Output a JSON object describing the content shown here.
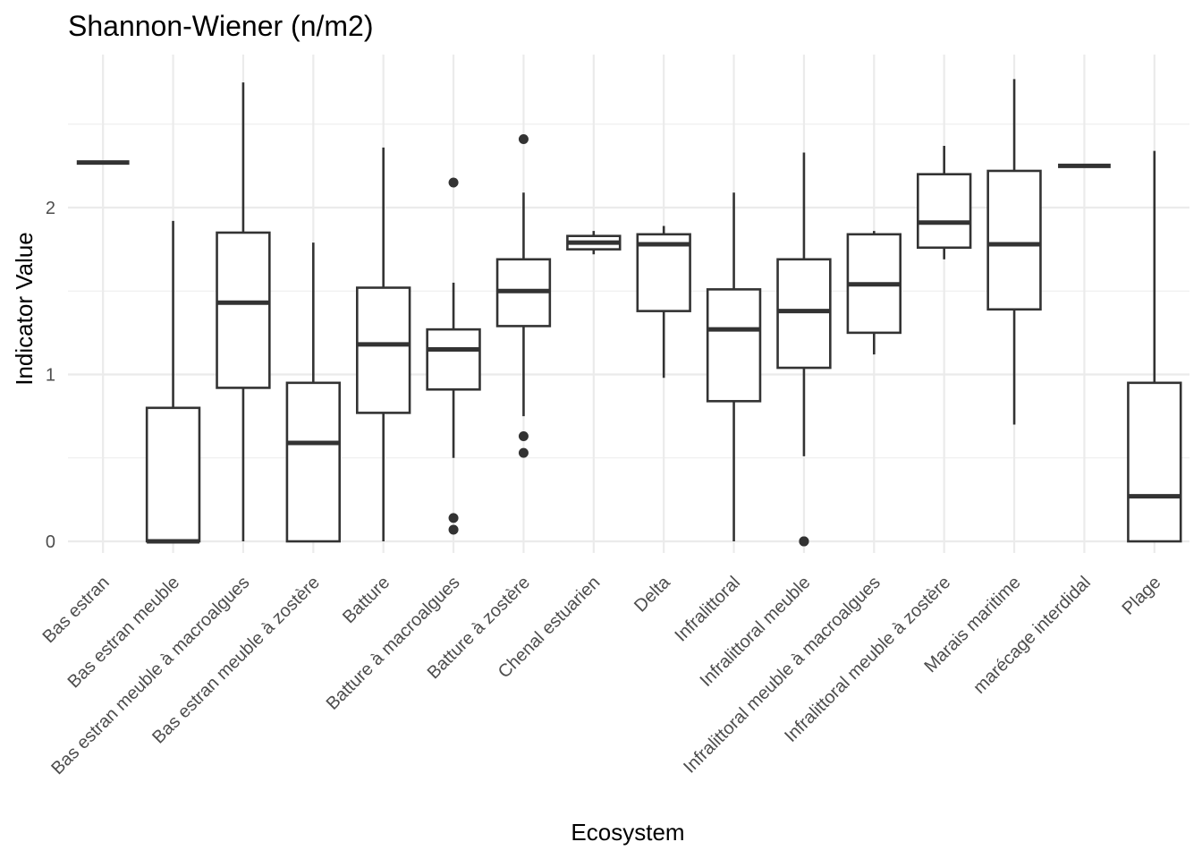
{
  "chart_data": {
    "type": "boxplot",
    "title": "Shannon-Wiener (n/m2)",
    "xlabel": "Ecosystem",
    "ylabel": "Indicator Value",
    "ylim": [
      -0.09,
      2.9
    ],
    "yticks": [
      0,
      1,
      2
    ],
    "grid": true,
    "legend": "none",
    "categories": [
      "Bas estran",
      "Bas estran meuble",
      "Bas estran meuble à macroalgues",
      "Bas estran meuble à zostère",
      "Batture",
      "Batture à macroalgues",
      "Batture à zostère",
      "Chenal estuarien",
      "Delta",
      "Infralittoral",
      "Infralittoral meuble",
      "Infralittoral meuble à macroalgues",
      "Infralittoral meuble à zostère",
      "Marais maritime",
      "marécage interdidal",
      "Plage"
    ],
    "boxes": [
      {
        "min": 2.27,
        "q1": 2.27,
        "median": 2.27,
        "q3": 2.27,
        "max": 2.27,
        "outliers": []
      },
      {
        "min": 0.0,
        "q1": 0.0,
        "median": 0.0,
        "q3": 0.8,
        "max": 1.92,
        "outliers": []
      },
      {
        "min": 0.0,
        "q1": 0.92,
        "median": 1.43,
        "q3": 1.85,
        "max": 2.75,
        "outliers": []
      },
      {
        "min": 0.0,
        "q1": 0.0,
        "median": 0.59,
        "q3": 0.95,
        "max": 1.79,
        "outliers": []
      },
      {
        "min": 0.0,
        "q1": 0.77,
        "median": 1.18,
        "q3": 1.52,
        "max": 2.36,
        "outliers": []
      },
      {
        "min": 0.5,
        "q1": 0.91,
        "median": 1.15,
        "q3": 1.27,
        "max": 1.55,
        "outliers": [
          2.15,
          0.14,
          0.07
        ]
      },
      {
        "min": 0.75,
        "q1": 1.29,
        "median": 1.5,
        "q3": 1.69,
        "max": 2.09,
        "outliers": [
          2.41,
          0.63,
          0.53
        ]
      },
      {
        "min": 1.72,
        "q1": 1.75,
        "median": 1.79,
        "q3": 1.83,
        "max": 1.86,
        "outliers": []
      },
      {
        "min": 0.98,
        "q1": 1.38,
        "median": 1.78,
        "q3": 1.84,
        "max": 1.89,
        "outliers": []
      },
      {
        "min": 0.0,
        "q1": 0.84,
        "median": 1.27,
        "q3": 1.51,
        "max": 2.09,
        "outliers": []
      },
      {
        "min": 0.51,
        "q1": 1.04,
        "median": 1.38,
        "q3": 1.69,
        "max": 2.33,
        "outliers": [
          0.0,
          0.0,
          0.0
        ]
      },
      {
        "min": 1.12,
        "q1": 1.25,
        "median": 1.54,
        "q3": 1.84,
        "max": 1.86,
        "outliers": []
      },
      {
        "min": 1.69,
        "q1": 1.76,
        "median": 1.91,
        "q3": 2.2,
        "max": 2.37,
        "outliers": []
      },
      {
        "min": 0.7,
        "q1": 1.39,
        "median": 1.78,
        "q3": 2.22,
        "max": 2.77,
        "outliers": []
      },
      {
        "min": 2.25,
        "q1": 2.25,
        "median": 2.25,
        "q3": 2.25,
        "max": 2.25,
        "outliers": []
      },
      {
        "min": 0.0,
        "q1": 0.0,
        "median": 0.27,
        "q3": 0.95,
        "max": 2.34,
        "outliers": []
      }
    ]
  }
}
